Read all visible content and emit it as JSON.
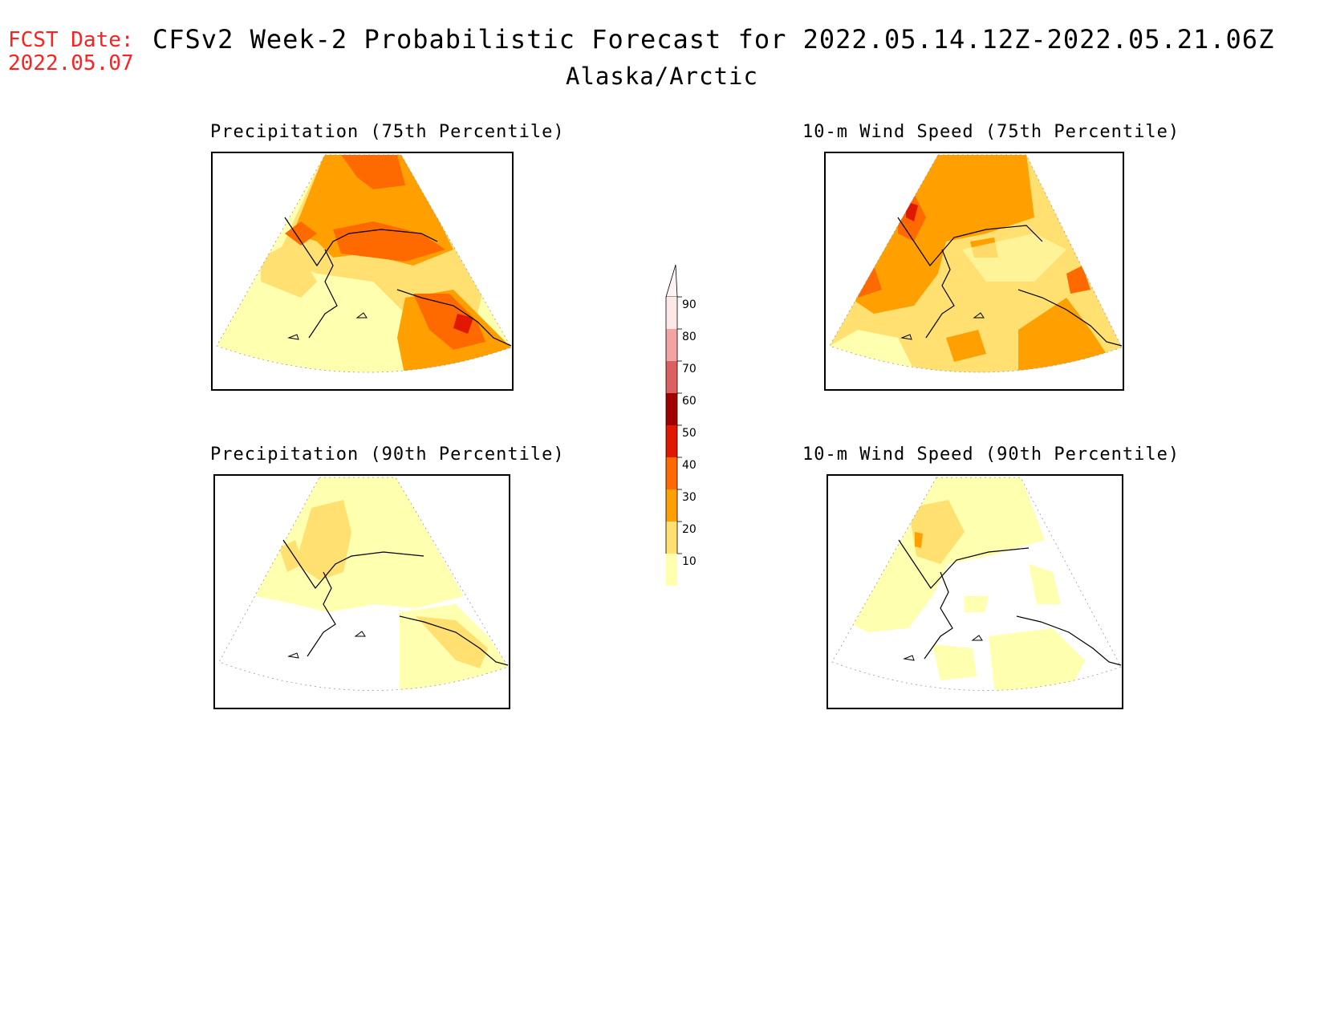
{
  "header": {
    "fcst_label": "FCST Date:",
    "fcst_date": "2022.05.07",
    "title": "CFSv2 Week-2 Probabilistic Forecast for 2022.05.14.12Z-2022.05.21.06Z",
    "region": "Alaska/Arctic"
  },
  "panels": [
    {
      "id": "precip75",
      "title": "Precipitation (75th Percentile)"
    },
    {
      "id": "wind75",
      "title": "10-m Wind Speed (75th Percentile)"
    },
    {
      "id": "precip90",
      "title": "Precipitation (90th Percentile)"
    },
    {
      "id": "wind90",
      "title": "10-m Wind Speed (90th Percentile)"
    }
  ],
  "colorbar": {
    "levels": [
      "90",
      "80",
      "70",
      "60",
      "50",
      "40",
      "30",
      "20",
      "10"
    ],
    "colors": [
      "#fde8e8",
      "#f4a3a3",
      "#dc6060",
      "#a00000",
      "#e01800",
      "#ff6a00",
      "#ffa000",
      "#ffe070",
      "#ffffb0"
    ]
  }
}
